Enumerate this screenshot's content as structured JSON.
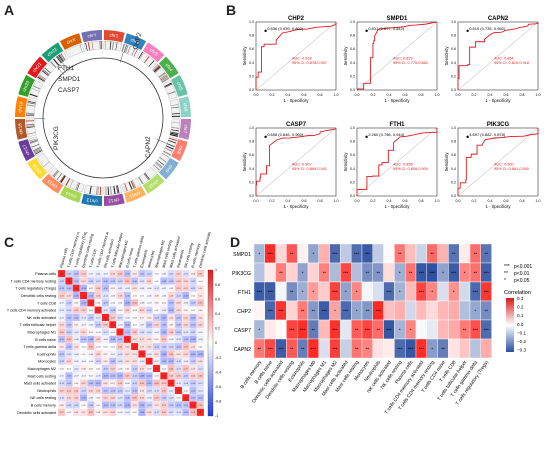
{
  "panels": {
    "A": {
      "label": "A",
      "chromosomes": [
        "chr1",
        "chr2",
        "chr3",
        "chr4",
        "chr5",
        "chr6",
        "chr7",
        "chr8",
        "chr9",
        "chr10",
        "chr11",
        "chr12",
        "chr13",
        "chr14",
        "chr15",
        "chr16",
        "chr17",
        "chr18",
        "chr19",
        "chr20",
        "chr21",
        "chr22",
        "chrX",
        "chrY"
      ],
      "chrom_colors": [
        "#e34a33",
        "#3182bd",
        "#f781bf",
        "#4daf4a",
        "#66c2a5",
        "#8dd3c7",
        "#bc80bd",
        "#fb8072",
        "#80b1d3",
        "#b3de69",
        "#fdb462",
        "#984ea3",
        "#1f78b4",
        "#a6d854",
        "#fc8d62",
        "#ffd92f",
        "#6a3d9a",
        "#b15928",
        "#ff7f00",
        "#33a02c",
        "#e31a1c",
        "#1b9e77",
        "#d95f02",
        "#7570b3"
      ],
      "genes": [
        "CHP2",
        "FTH1",
        "SMPD1",
        "CASP7",
        "PIK3CG",
        "CAPN2"
      ]
    },
    "B": {
      "label": "B",
      "x_axis": "1 - Specificity",
      "y_axis": "Sensitivity",
      "rocs": [
        {
          "gene": "CHP2",
          "point": "0.836 (0.939, 0.860)",
          "auc": "AUC: 0.918",
          "ci": "95% CI: 0.878-0.957"
        },
        {
          "gene": "SMPD1",
          "point": "0.831 (0.877, 0.842)",
          "auc": "AUC: 0.823",
          "ci": "95% CI: 0.775-0.882"
        },
        {
          "gene": "CAPN2",
          "point": "0.619 (0.735, 0.950)",
          "auc": "AUC: 0.864",
          "ci": "95% CI: 0.819-0.918"
        },
        {
          "gene": "CASP7",
          "point": "0.658 (0.846, 0.960)",
          "auc": "AUC: 0.907",
          "ci": "95% CI: 0.869-0.941"
        },
        {
          "gene": "FTH1",
          "point": "2.260 (0.756, 0.944)",
          "auc": "AUC: 0.858",
          "ci": "95% CI: 0.808-0.909"
        },
        {
          "gene": "PIK3CG",
          "point": "4.697 (0.882, 0.878)",
          "auc": "AUC: 0.900",
          "ci": "95% CI: 0.861-0.950"
        }
      ]
    },
    "C": {
      "label": "C",
      "cells": [
        "Plasma cells",
        "T cells CD4 memory resting",
        "T cells regulatory (Tregs)",
        "Dendritic cells resting",
        "T cells CD8",
        "T cells CD4 memory activated",
        "NK cells activated",
        "T cells follicular helper",
        "Macrophages M1",
        "B cells naive",
        "T cells gamma delta",
        "Eosinophils",
        "Monocytes",
        "Macrophages M2",
        "Mast cells resting",
        "Mast cells activated",
        "Neutrophils",
        "NK cells resting",
        "B cells memory",
        "Dendritic cells activated"
      ],
      "legend_ticks": [
        "1",
        "0.8",
        "0.6",
        "0.4",
        "0.2",
        "0",
        "-0.2",
        "-0.4",
        "-0.6",
        "-0.8",
        "-1"
      ]
    },
    "D": {
      "label": "D",
      "genes": [
        "SMPD1",
        "PIK3CG",
        "FTH1",
        "CHP2",
        "CASP7",
        "CAPN2"
      ],
      "cells": [
        "B cells memory",
        "B cells naive",
        "Dendritic cells activated",
        "Dendritic cells resting",
        "Eosinophils",
        "Macrophages M0",
        "Macrophages M1",
        "Macrophages M2",
        "Mast cells activated",
        "Mast cells resting",
        "Monocytes",
        "Neutrophils",
        "NK cells activated",
        "NK cells resting",
        "Plasma cells",
        "T cells CD4 memory activated",
        "T cells CD4 memory resting",
        "T cells CD4 naive",
        "T cells CD8",
        "T cells follicular helper",
        "T cells gamma delta",
        "T cells regulatory (Tregs)"
      ],
      "sig_legend": [
        {
          "stars": "***",
          "text": "p<0.001"
        },
        {
          "stars": "**",
          "text": "p<0.01"
        },
        {
          "stars": "*",
          "text": "p<0.05"
        }
      ],
      "colorbar_title": "Correlation",
      "colorbar_ticks": [
        "0.3",
        "0.2",
        "0.1",
        "0.0",
        "−0.1",
        "−0.2",
        "−0.3"
      ],
      "colors": {
        "high": "#d7191c",
        "low": "#2c4ea0",
        "mid": "#ffffff"
      }
    }
  }
}
